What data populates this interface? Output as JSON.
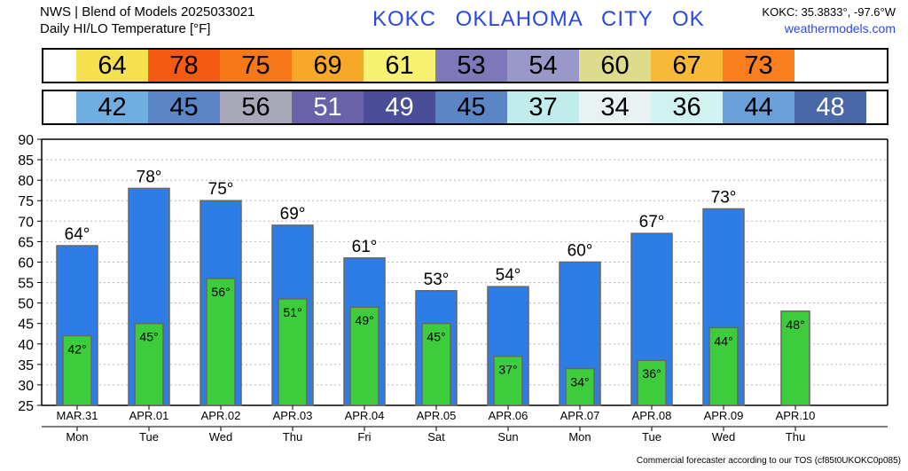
{
  "header": {
    "line1": "NWS | Blend of Models 2025033021",
    "line2": "Daily HI/LO Temperature [°F]",
    "station_title": "KOKC OKLAHOMA CITY OK",
    "coords": "KOKC: 35.3833°, -97.6°W",
    "site": "weathermodels.com"
  },
  "footer": "Commercial forecaster according to our TOS (cf85t0UKOKC0p085)",
  "colors": {
    "bar_high": "#2e7de6",
    "bar_low": "#3ccc3c",
    "bar_edge": "#666666"
  },
  "hi_strip": [
    {
      "text": "64",
      "bg": "#f5e050",
      "fg": "#000000"
    },
    {
      "text": "78",
      "bg": "#f55a14",
      "fg": "#000000"
    },
    {
      "text": "75",
      "bg": "#f87818",
      "fg": "#000000"
    },
    {
      "text": "69",
      "bg": "#f8a828",
      "fg": "#000000"
    },
    {
      "text": "61",
      "bg": "#f8f070",
      "fg": "#000000"
    },
    {
      "text": "53",
      "bg": "#7e78b8",
      "fg": "#000000"
    },
    {
      "text": "54",
      "bg": "#9a98c8",
      "fg": "#000000"
    },
    {
      "text": "60",
      "bg": "#dcdc8c",
      "fg": "#000000"
    },
    {
      "text": "67",
      "bg": "#f8b838",
      "fg": "#000000"
    },
    {
      "text": "73",
      "bg": "#f87e1e",
      "fg": "#000000"
    },
    {
      "text": "",
      "bg": "#ffffff",
      "fg": "#000000"
    }
  ],
  "lo_strip": [
    {
      "text": "42",
      "bg": "#6eaee0",
      "fg": "#000000"
    },
    {
      "text": "45",
      "bg": "#5a86c6",
      "fg": "#000000"
    },
    {
      "text": "56",
      "bg": "#a8a8b8",
      "fg": "#000000"
    },
    {
      "text": "51",
      "bg": "#6a62a8",
      "fg": "#ffffff"
    },
    {
      "text": "49",
      "bg": "#4a4e98",
      "fg": "#ffffff"
    },
    {
      "text": "45",
      "bg": "#5a86c6",
      "fg": "#000000"
    },
    {
      "text": "37",
      "bg": "#c0ecec",
      "fg": "#000000"
    },
    {
      "text": "34",
      "bg": "#e8f2f2",
      "fg": "#000000"
    },
    {
      "text": "36",
      "bg": "#d2f2f2",
      "fg": "#000000"
    },
    {
      "text": "44",
      "bg": "#6aa0d8",
      "fg": "#000000"
    },
    {
      "text": "48",
      "bg": "#4a68a8",
      "fg": "#ffffff"
    }
  ],
  "chart_data": {
    "type": "bar",
    "categories": [
      "MAR.31",
      "APR.01",
      "APR.02",
      "APR.03",
      "APR.04",
      "APR.05",
      "APR.06",
      "APR.07",
      "APR.08",
      "APR.09",
      "APR.10"
    ],
    "weekdays": [
      "Mon",
      "Tue",
      "Wed",
      "Thu",
      "Fri",
      "Sat",
      "Sun",
      "Mon",
      "Tue",
      "Wed",
      "Thu"
    ],
    "series": [
      {
        "values": [
          64,
          78,
          75,
          69,
          61,
          53,
          54,
          60,
          67,
          73,
          null
        ],
        "labels": [
          "64°",
          "78°",
          "75°",
          "69°",
          "61°",
          "53°",
          "54°",
          "60°",
          "67°",
          "73°",
          ""
        ]
      },
      {
        "values": [
          42,
          45,
          56,
          51,
          49,
          45,
          37,
          34,
          36,
          44,
          48
        ],
        "labels": [
          "42°",
          "45°",
          "56°",
          "51°",
          "49°",
          "45°",
          "37°",
          "34°",
          "36°",
          "44°",
          "48°"
        ]
      }
    ],
    "ylim": [
      25,
      90
    ],
    "yticks": [
      "25",
      "30",
      "35",
      "40",
      "45",
      "50",
      "55",
      "60",
      "65",
      "70",
      "75",
      "80",
      "85",
      "90"
    ],
    "grid": true
  }
}
